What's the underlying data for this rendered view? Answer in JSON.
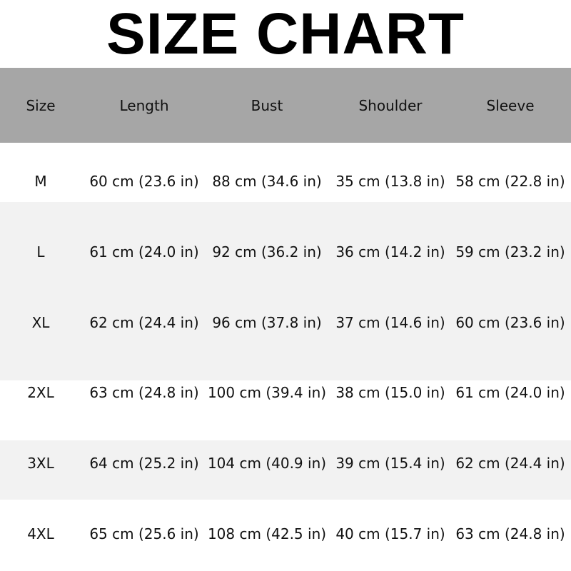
{
  "title": "SIZE CHART",
  "colors": {
    "header_bg": "#a6a6a6",
    "stripe_bg": "#f2f2f2",
    "row_bg": "#ffffff"
  },
  "table": {
    "headers": [
      "Size",
      "Length",
      "Bust",
      "Shoulder",
      "Sleeve"
    ],
    "rows": [
      [
        "M",
        "60 cm (23.6 in)",
        "88 cm (34.6 in)",
        "35 cm (13.8 in)",
        "58 cm (22.8 in)"
      ],
      [
        "L",
        "61 cm (24.0 in)",
        "92 cm (36.2 in)",
        "36 cm (14.2 in)",
        "59 cm (23.2 in)"
      ],
      [
        "XL",
        "62 cm (24.4 in)",
        "96 cm (37.8 in)",
        "37 cm (14.6 in)",
        "60 cm (23.6 in)"
      ],
      [
        "2XL",
        "63 cm (24.8 in)",
        "100 cm (39.4 in)",
        "38 cm (15.0 in)",
        "61 cm (24.0 in)"
      ],
      [
        "3XL",
        "64 cm (25.2 in)",
        "104 cm (40.9 in)",
        "39 cm (15.4 in)",
        "62 cm (24.4 in)"
      ],
      [
        "4XL",
        "65 cm (25.6 in)",
        "108 cm (42.5 in)",
        "40 cm (15.7 in)",
        "63 cm (24.8 in)"
      ]
    ]
  }
}
